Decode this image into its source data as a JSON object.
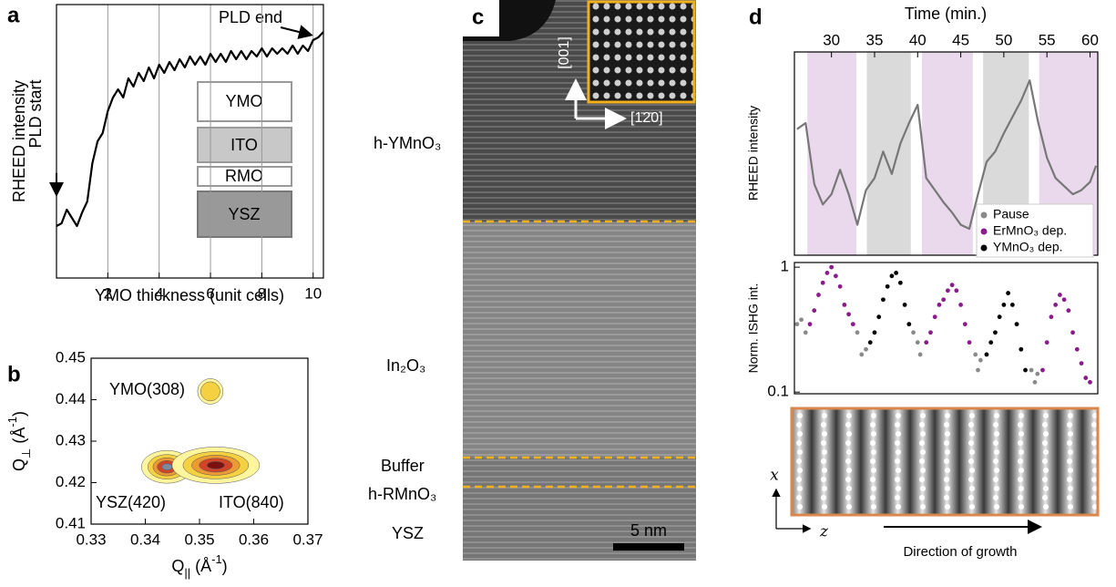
{
  "panel_labels": [
    "a",
    "b",
    "c",
    "d"
  ],
  "chart_data": [
    {
      "type": "line",
      "x_label": "YMO thickness (unit cells)",
      "y_label": "RHEED intensity",
      "color": "#000000",
      "x": [
        0,
        0.2,
        0.4,
        0.6,
        0.8,
        1.0,
        1.2,
        1.4,
        1.6,
        1.8,
        2.0,
        2.2,
        2.4,
        2.6,
        2.8,
        3.0,
        3.2,
        3.4,
        3.6,
        3.8,
        4.0,
        4.2,
        4.4,
        4.6,
        4.8,
        5.0,
        5.2,
        5.4,
        5.6,
        5.8,
        6.0,
        6.2,
        6.4,
        6.6,
        6.8,
        7.0,
        7.2,
        7.4,
        7.6,
        7.8,
        8.0,
        8.2,
        8.4,
        8.6,
        8.8,
        9.0,
        9.2,
        9.4,
        9.6,
        9.8,
        10.0,
        10.2,
        10.4
      ],
      "values": [
        1.9,
        2.0,
        2.5,
        2.2,
        1.9,
        2.4,
        2.8,
        4.2,
        5.0,
        5.3,
        6.1,
        6.6,
        6.9,
        6.6,
        7.3,
        7.0,
        7.5,
        7.2,
        7.7,
        7.3,
        7.8,
        7.5,
        7.9,
        7.6,
        8.0,
        7.7,
        8.1,
        7.8,
        8.1,
        7.8,
        8.2,
        7.9,
        8.2,
        7.9,
        8.3,
        8.0,
        8.3,
        8.0,
        8.3,
        8.1,
        8.4,
        8.1,
        8.4,
        8.2,
        8.4,
        8.2,
        8.5,
        8.2,
        8.5,
        8.3,
        8.7,
        8.8,
        9.0
      ],
      "xlim": [
        0,
        10.4
      ],
      "ylim": [
        0,
        10
      ],
      "xticks": [
        2,
        4,
        6,
        8,
        10
      ],
      "grid": true,
      "annotations": [
        "PLD start",
        "PLD end"
      ],
      "layers": [
        "YMO",
        "ITO",
        "RMO",
        "YSZ"
      ]
    },
    {
      "type": "contour",
      "x_label_parts": [
        "Q",
        "||",
        " (Å",
        "-1",
        ")"
      ],
      "y_label_parts": [
        "Q",
        "⊥",
        " (Å",
        "-1",
        ")"
      ],
      "categories": [
        "YMO(308)",
        "YSZ(420)",
        "ITO(840)"
      ],
      "x": [
        0.352,
        0.344,
        0.353
      ],
      "values": [
        0.442,
        0.4238,
        0.4242
      ],
      "xlim": [
        0.33,
        0.37
      ],
      "ylim": [
        0.41,
        0.45
      ],
      "xticks": [
        0.33,
        0.34,
        0.35,
        0.36,
        0.37
      ],
      "yticks": [
        0.41,
        0.42,
        0.43,
        0.44,
        0.45
      ]
    },
    {
      "type": "line",
      "x_label": "Time (min.)",
      "y_label": "RHEED intensity",
      "color": "#777777",
      "x": [
        26,
        27,
        28,
        29,
        30,
        31,
        32,
        33,
        34,
        35,
        36,
        37,
        38,
        39,
        40,
        41,
        42,
        43,
        44,
        45,
        46,
        47,
        48,
        49,
        50,
        51,
        52,
        53,
        54,
        55,
        56,
        57,
        58,
        59,
        60,
        60.7
      ],
      "values": [
        6.2,
        6.5,
        3.5,
        2.5,
        3.0,
        4.2,
        3.0,
        1.5,
        3.2,
        3.8,
        5.1,
        4.0,
        5.5,
        6.5,
        7.4,
        3.8,
        3.2,
        2.6,
        2.1,
        1.5,
        1.3,
        3.0,
        4.6,
        5.1,
        6.0,
        6.8,
        7.6,
        8.6,
        6.5,
        4.8,
        3.8,
        3.4,
        3.0,
        3.2,
        3.6,
        4.4
      ],
      "xlim": [
        25.7,
        60.9
      ],
      "ylim": [
        0,
        10
      ],
      "xticks": [
        30,
        35,
        40,
        45,
        50,
        55,
        60
      ],
      "regions": [
        {
          "start": 27.2,
          "end": 32.9,
          "color": "#ead8ec"
        },
        {
          "start": 34.1,
          "end": 39.2,
          "color": "#dadada"
        },
        {
          "start": 40.5,
          "end": 46.4,
          "color": "#ead8ec"
        },
        {
          "start": 47.6,
          "end": 52.9,
          "color": "#dadada"
        },
        {
          "start": 54.1,
          "end": 60.9,
          "color": "#ead8ec"
        }
      ]
    },
    {
      "type": "scatter",
      "y_label": "Norm. ISHG int.",
      "log_scale": true,
      "legend": "upper right",
      "xlim": [
        25.7,
        60.9
      ],
      "ylim": [
        0.097,
        1.09
      ],
      "yticks": [
        0.1,
        1
      ],
      "series": [
        {
          "name": "Pause",
          "color": "#8a8a8a",
          "x": [
            26,
            26.5,
            27,
            33,
            33.5,
            34,
            39.5,
            40,
            40.3,
            46.7,
            47,
            47.3,
            53.2,
            53.6,
            53.9
          ],
          "values": [
            0.35,
            0.38,
            0.3,
            0.3,
            0.2,
            0.22,
            0.3,
            0.25,
            0.2,
            0.2,
            0.15,
            0.18,
            0.15,
            0.12,
            0.14
          ]
        },
        {
          "name": "ErMnO₃ dep.",
          "color": "#8b1a8b",
          "x": [
            27.5,
            28,
            28.5,
            29,
            29.5,
            30,
            30.5,
            31,
            31.5,
            32,
            32.5,
            41,
            41.5,
            42,
            42.5,
            43,
            43.5,
            44,
            44.5,
            45,
            45.5,
            46,
            54.5,
            55,
            55.5,
            56,
            56.5,
            57,
            57.5,
            58,
            58.5,
            59,
            59.5,
            60
          ],
          "values": [
            0.35,
            0.45,
            0.6,
            0.75,
            0.9,
            1.0,
            0.85,
            0.7,
            0.5,
            0.42,
            0.35,
            0.25,
            0.3,
            0.4,
            0.5,
            0.55,
            0.65,
            0.72,
            0.65,
            0.5,
            0.35,
            0.25,
            0.15,
            0.25,
            0.4,
            0.5,
            0.6,
            0.55,
            0.45,
            0.3,
            0.22,
            0.17,
            0.13,
            0.12
          ]
        },
        {
          "name": "YMnO₃ dep.",
          "color": "#000000",
          "x": [
            34.5,
            35,
            35.5,
            36,
            36.5,
            37,
            37.5,
            38,
            38.5,
            39,
            48,
            48.5,
            49,
            49.5,
            50,
            50.5,
            51,
            51.5,
            52,
            52.5
          ],
          "values": [
            0.25,
            0.3,
            0.4,
            0.55,
            0.7,
            0.85,
            0.9,
            0.75,
            0.5,
            0.35,
            0.2,
            0.25,
            0.3,
            0.4,
            0.5,
            0.62,
            0.5,
            0.35,
            0.22,
            0.15
          ]
        }
      ]
    }
  ],
  "panel_c": {
    "labels": [
      "h-YMnO₃",
      "In₂O₃",
      "Buffer",
      "h-RMnO₃",
      "YSZ"
    ],
    "scale_bar": "5 nm",
    "inset_axes": [
      "[001]",
      "[1̄2̄0]"
    ]
  },
  "panel_d_image": {
    "axes": [
      "x",
      "z"
    ],
    "caption": "Direction of growth"
  }
}
